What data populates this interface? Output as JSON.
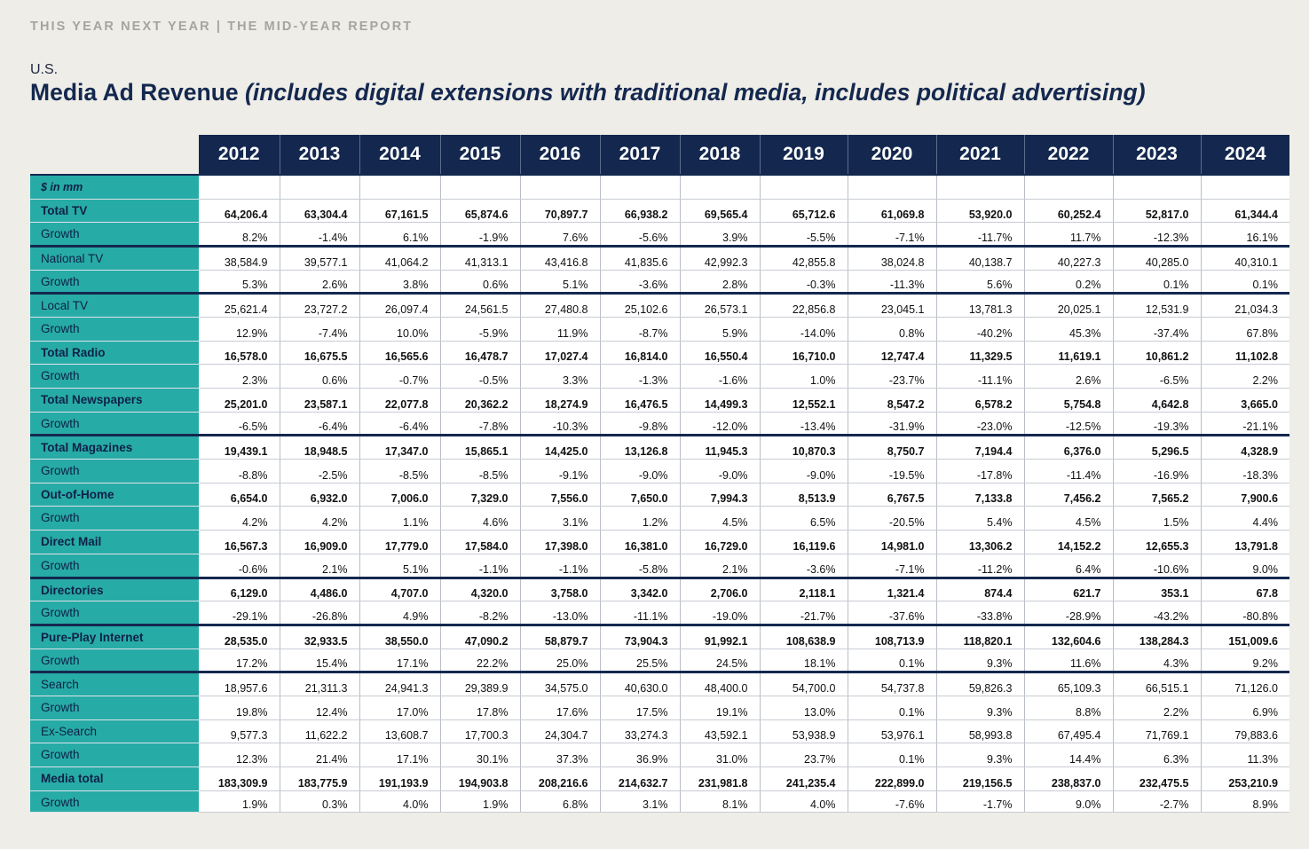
{
  "header": {
    "line": "THIS YEAR NEXT YEAR | THE MID-YEAR REPORT"
  },
  "region": "U.S.",
  "title": {
    "main": "Media Ad Revenue",
    "sub": "(includes digital extensions with traditional media, includes political advertising)"
  },
  "colors": {
    "navy": "#14284f",
    "teal": "#27aba6",
    "background": "#eeede7"
  },
  "table": {
    "years": [
      "2012",
      "2013",
      "2014",
      "2015",
      "2016",
      "2017",
      "2018",
      "2019",
      "2020",
      "2021",
      "2022",
      "2023",
      "2024"
    ],
    "unit_label": "$ in mm",
    "rows": [
      {
        "label": "Total TV",
        "bold": true,
        "values": [
          "64,206.4",
          "63,304.4",
          "67,161.5",
          "65,874.6",
          "70,897.7",
          "66,938.2",
          "69,565.4",
          "65,712.6",
          "61,069.8",
          "53,920.0",
          "60,252.4",
          "52,817.0",
          "61,344.4"
        ]
      },
      {
        "label": "Growth",
        "values": [
          "8.2%",
          "-1.4%",
          "6.1%",
          "-1.9%",
          "7.6%",
          "-5.6%",
          "3.9%",
          "-5.5%",
          "-7.1%",
          "-11.7%",
          "11.7%",
          "-12.3%",
          "16.1%"
        ]
      },
      {
        "label": "National TV",
        "sep": true,
        "values": [
          "38,584.9",
          "39,577.1",
          "41,064.2",
          "41,313.1",
          "43,416.8",
          "41,835.6",
          "42,992.3",
          "42,855.8",
          "38,024.8",
          "40,138.7",
          "40,227.3",
          "40,285.0",
          "40,310.1"
        ]
      },
      {
        "label": "Growth",
        "values": [
          "5.3%",
          "2.6%",
          "3.8%",
          "0.6%",
          "5.1%",
          "-3.6%",
          "2.8%",
          "-0.3%",
          "-11.3%",
          "5.6%",
          "0.2%",
          "0.1%",
          "0.1%"
        ]
      },
      {
        "label": "Local TV",
        "sep": true,
        "values": [
          "25,621.4",
          "23,727.2",
          "26,097.4",
          "24,561.5",
          "27,480.8",
          "25,102.6",
          "26,573.1",
          "22,856.8",
          "23,045.1",
          "13,781.3",
          "20,025.1",
          "12,531.9",
          "21,034.3"
        ]
      },
      {
        "label": "Growth",
        "values": [
          "12.9%",
          "-7.4%",
          "10.0%",
          "-5.9%",
          "11.9%",
          "-8.7%",
          "5.9%",
          "-14.0%",
          "0.8%",
          "-40.2%",
          "45.3%",
          "-37.4%",
          "67.8%"
        ]
      },
      {
        "label": "Total Radio",
        "bold": true,
        "values": [
          "16,578.0",
          "16,675.5",
          "16,565.6",
          "16,478.7",
          "17,027.4",
          "16,814.0",
          "16,550.4",
          "16,710.0",
          "12,747.4",
          "11,329.5",
          "11,619.1",
          "10,861.2",
          "11,102.8"
        ]
      },
      {
        "label": "Growth",
        "values": [
          "2.3%",
          "0.6%",
          "-0.7%",
          "-0.5%",
          "3.3%",
          "-1.3%",
          "-1.6%",
          "1.0%",
          "-23.7%",
          "-11.1%",
          "2.6%",
          "-6.5%",
          "2.2%"
        ]
      },
      {
        "label": "Total Newspapers",
        "bold": true,
        "values": [
          "25,201.0",
          "23,587.1",
          "22,077.8",
          "20,362.2",
          "18,274.9",
          "16,476.5",
          "14,499.3",
          "12,552.1",
          "8,547.2",
          "6,578.2",
          "5,754.8",
          "4,642.8",
          "3,665.0"
        ]
      },
      {
        "label": "Growth",
        "values": [
          "-6.5%",
          "-6.4%",
          "-6.4%",
          "-7.8%",
          "-10.3%",
          "-9.8%",
          "-12.0%",
          "-13.4%",
          "-31.9%",
          "-23.0%",
          "-12.5%",
          "-19.3%",
          "-21.1%"
        ]
      },
      {
        "label": "Total Magazines",
        "bold": true,
        "sep": true,
        "values": [
          "19,439.1",
          "18,948.5",
          "17,347.0",
          "15,865.1",
          "14,425.0",
          "13,126.8",
          "11,945.3",
          "10,870.3",
          "8,750.7",
          "7,194.4",
          "6,376.0",
          "5,296.5",
          "4,328.9"
        ]
      },
      {
        "label": "Growth",
        "values": [
          "-8.8%",
          "-2.5%",
          "-8.5%",
          "-8.5%",
          "-9.1%",
          "-9.0%",
          "-9.0%",
          "-9.0%",
          "-19.5%",
          "-17.8%",
          "-11.4%",
          "-16.9%",
          "-18.3%"
        ]
      },
      {
        "label": "Out-of-Home",
        "bold": true,
        "values": [
          "6,654.0",
          "6,932.0",
          "7,006.0",
          "7,329.0",
          "7,556.0",
          "7,650.0",
          "7,994.3",
          "8,513.9",
          "6,767.5",
          "7,133.8",
          "7,456.2",
          "7,565.2",
          "7,900.6"
        ]
      },
      {
        "label": "Growth",
        "values": [
          "4.2%",
          "4.2%",
          "1.1%",
          "4.6%",
          "3.1%",
          "1.2%",
          "4.5%",
          "6.5%",
          "-20.5%",
          "5.4%",
          "4.5%",
          "1.5%",
          "4.4%"
        ]
      },
      {
        "label": "Direct Mail",
        "bold": true,
        "values": [
          "16,567.3",
          "16,909.0",
          "17,779.0",
          "17,584.0",
          "17,398.0",
          "16,381.0",
          "16,729.0",
          "16,119.6",
          "14,981.0",
          "13,306.2",
          "14,152.2",
          "12,655.3",
          "13,791.8"
        ]
      },
      {
        "label": "Growth",
        "values": [
          "-0.6%",
          "2.1%",
          "5.1%",
          "-1.1%",
          "-1.1%",
          "-5.8%",
          "2.1%",
          "-3.6%",
          "-7.1%",
          "-11.2%",
          "6.4%",
          "-10.6%",
          "9.0%"
        ]
      },
      {
        "label": "Directories",
        "bold": true,
        "sep": true,
        "values": [
          "6,129.0",
          "4,486.0",
          "4,707.0",
          "4,320.0",
          "3,758.0",
          "3,342.0",
          "2,706.0",
          "2,118.1",
          "1,321.4",
          "874.4",
          "621.7",
          "353.1",
          "67.8"
        ]
      },
      {
        "label": "Growth",
        "values": [
          "-29.1%",
          "-26.8%",
          "4.9%",
          "-8.2%",
          "-13.0%",
          "-11.1%",
          "-19.0%",
          "-21.7%",
          "-37.6%",
          "-33.8%",
          "-28.9%",
          "-43.2%",
          "-80.8%"
        ]
      },
      {
        "label": "Pure-Play Internet",
        "bold": true,
        "sep": true,
        "values": [
          "28,535.0",
          "32,933.5",
          "38,550.0",
          "47,090.2",
          "58,879.7",
          "73,904.3",
          "91,992.1",
          "108,638.9",
          "108,713.9",
          "118,820.1",
          "132,604.6",
          "138,284.3",
          "151,009.6"
        ]
      },
      {
        "label": "Growth",
        "values": [
          "17.2%",
          "15.4%",
          "17.1%",
          "22.2%",
          "25.0%",
          "25.5%",
          "24.5%",
          "18.1%",
          "0.1%",
          "9.3%",
          "11.6%",
          "4.3%",
          "9.2%"
        ]
      },
      {
        "label": "Search",
        "sep": true,
        "values": [
          "18,957.6",
          "21,311.3",
          "24,941.3",
          "29,389.9",
          "34,575.0",
          "40,630.0",
          "48,400.0",
          "54,700.0",
          "54,737.8",
          "59,826.3",
          "65,109.3",
          "66,515.1",
          "71,126.0"
        ]
      },
      {
        "label": "Growth",
        "values": [
          "19.8%",
          "12.4%",
          "17.0%",
          "17.8%",
          "17.6%",
          "17.5%",
          "19.1%",
          "13.0%",
          "0.1%",
          "9.3%",
          "8.8%",
          "2.2%",
          "6.9%"
        ]
      },
      {
        "label": "Ex-Search",
        "values": [
          "9,577.3",
          "11,622.2",
          "13,608.7",
          "17,700.3",
          "24,304.7",
          "33,274.3",
          "43,592.1",
          "53,938.9",
          "53,976.1",
          "58,993.8",
          "67,495.4",
          "71,769.1",
          "79,883.6"
        ]
      },
      {
        "label": "Growth",
        "values": [
          "12.3%",
          "21.4%",
          "17.1%",
          "30.1%",
          "37.3%",
          "36.9%",
          "31.0%",
          "23.7%",
          "0.1%",
          "9.3%",
          "14.4%",
          "6.3%",
          "11.3%"
        ]
      },
      {
        "label": "Media total",
        "bold": true,
        "values": [
          "183,309.9",
          "183,775.9",
          "191,193.9",
          "194,903.8",
          "208,216.6",
          "214,632.7",
          "231,981.8",
          "241,235.4",
          "222,899.0",
          "219,156.5",
          "238,837.0",
          "232,475.5",
          "253,210.9"
        ]
      },
      {
        "label": "Growth",
        "values": [
          "1.9%",
          "0.3%",
          "4.0%",
          "1.9%",
          "6.8%",
          "3.1%",
          "8.1%",
          "4.0%",
          "-7.6%",
          "-1.7%",
          "9.0%",
          "-2.7%",
          "8.9%"
        ]
      }
    ]
  }
}
